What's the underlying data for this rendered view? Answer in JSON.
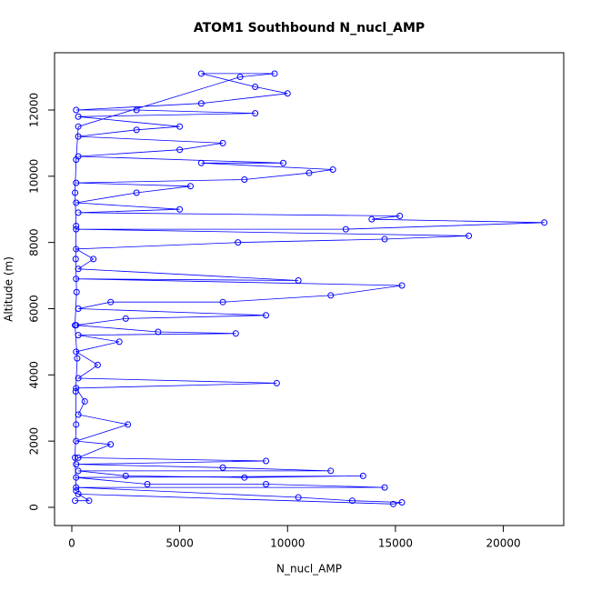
{
  "chart_data": {
    "type": "line",
    "title": "ATOM1 Southbound N_nucl_AMP",
    "xlabel": "N_nucl_AMP",
    "ylabel": "Altitude (m)",
    "markers": true,
    "x": [
      150,
      800,
      300,
      14900,
      15300,
      13000,
      10500,
      200,
      14500,
      9000,
      3500,
      200,
      13500,
      8000,
      2500,
      300,
      12000,
      7000,
      200,
      9000,
      300,
      1800,
      200,
      2600,
      300,
      600,
      200,
      9500,
      300,
      1200,
      200,
      2200,
      300,
      7600,
      4000,
      200,
      2500,
      9000,
      300,
      1800,
      7000,
      12000,
      15300,
      200,
      10500,
      300,
      1000,
      200,
      7700,
      14500,
      18400,
      200,
      12700,
      21900,
      13900,
      15200,
      300,
      5000,
      200,
      3000,
      5500,
      200,
      8000,
      11000,
      12100,
      6000,
      9800,
      300,
      5000,
      7000,
      300,
      3000,
      5000,
      300,
      8500,
      3000,
      200,
      6000,
      10000,
      8500,
      6000,
      9400,
      7800,
      300,
      200,
      150,
      200,
      180,
      220,
      150,
      250,
      180,
      200,
      150,
      200
    ],
    "series": [
      {
        "color": "#0000ff",
        "values": [
          200,
          200,
          400,
          100,
          150,
          200,
          300,
          600,
          600,
          700,
          700,
          900,
          950,
          900,
          950,
          1100,
          1100,
          1200,
          1300,
          1400,
          1500,
          1900,
          2000,
          2500,
          2800,
          3200,
          3600,
          3750,
          3900,
          4300,
          4700,
          5000,
          5200,
          5250,
          5300,
          5500,
          5700,
          5800,
          6000,
          6200,
          6200,
          6400,
          6700,
          6900,
          6850,
          7200,
          7500,
          7800,
          8000,
          8100,
          8200,
          8400,
          8400,
          8600,
          8700,
          8800,
          8900,
          9000,
          9200,
          9500,
          9700,
          9800,
          9900,
          10100,
          10200,
          10400,
          10400,
          10600,
          10800,
          11000,
          11200,
          11400,
          11500,
          11800,
          11900,
          12000,
          12000,
          12200,
          12500,
          12700,
          13100,
          13100,
          13000,
          11500,
          10500,
          9500,
          8500,
          7500,
          6500,
          5500,
          4500,
          3500,
          2500,
          1500,
          500
        ]
      }
    ],
    "xlim": [
      -800,
      22800
    ],
    "ylim": [
      -550,
      13730
    ],
    "xticks": [
      0,
      5000,
      10000,
      15000,
      20000
    ],
    "yticks": [
      0,
      2000,
      4000,
      6000,
      8000,
      10000,
      12000
    ]
  }
}
